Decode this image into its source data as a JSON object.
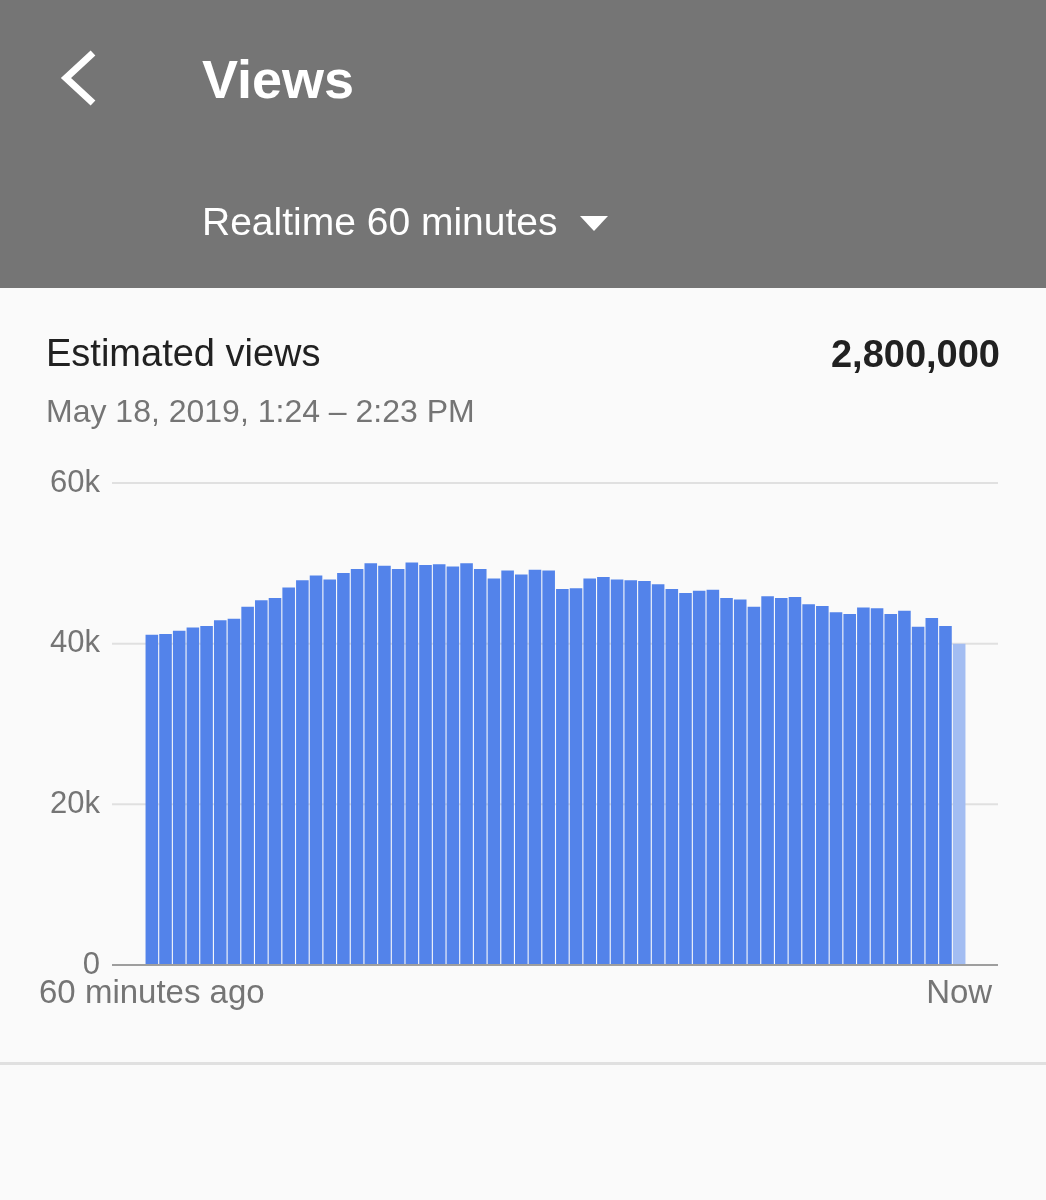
{
  "chart_data": {
    "type": "bar",
    "title": "Estimated views",
    "subtitle": "May 18, 2019, 1:24 – 2:23 PM",
    "annotations": [
      "Views",
      "Realtime 60 minutes",
      "2,800,000"
    ],
    "categories": [
      "60 minutes ago",
      null,
      null,
      null,
      null,
      null,
      null,
      null,
      null,
      null,
      null,
      null,
      null,
      null,
      null,
      null,
      null,
      null,
      null,
      null,
      null,
      null,
      null,
      null,
      null,
      null,
      null,
      null,
      null,
      null,
      null,
      null,
      null,
      null,
      null,
      null,
      null,
      null,
      null,
      null,
      null,
      null,
      null,
      null,
      null,
      null,
      null,
      null,
      null,
      null,
      null,
      null,
      null,
      null,
      null,
      null,
      null,
      null,
      null,
      "Now"
    ],
    "values": [
      41100,
      41200,
      41600,
      42000,
      42200,
      42900,
      43100,
      44600,
      45400,
      45700,
      47000,
      47900,
      48500,
      48000,
      48800,
      49300,
      50000,
      49700,
      49300,
      50100,
      49800,
      49900,
      49600,
      50000,
      49300,
      48100,
      49100,
      48600,
      49200,
      49100,
      46800,
      46900,
      48100,
      48300,
      48000,
      47900,
      47800,
      47400,
      46800,
      46300,
      46600,
      46700,
      45700,
      45500,
      44600,
      45900,
      45700,
      45800,
      44900,
      44700,
      43900,
      43700,
      44500,
      44400,
      43700,
      44100,
      42100,
      43200,
      42200,
      40000
    ],
    "colors": [
      "#5383ea",
      "#5383ea",
      "#5383ea",
      "#5383ea",
      "#5383ea",
      "#5383ea",
      "#5383ea",
      "#5383ea",
      "#5383ea",
      "#5383ea",
      "#5383ea",
      "#5383ea",
      "#5383ea",
      "#5383ea",
      "#5383ea",
      "#5383ea",
      "#5383ea",
      "#5383ea",
      "#5383ea",
      "#5383ea",
      "#5383ea",
      "#5383ea",
      "#5383ea",
      "#5383ea",
      "#5383ea",
      "#5383ea",
      "#5383ea",
      "#5383ea",
      "#5383ea",
      "#5383ea",
      "#5383ea",
      "#5383ea",
      "#5383ea",
      "#5383ea",
      "#5383ea",
      "#5383ea",
      "#5383ea",
      "#5383ea",
      "#5383ea",
      "#5383ea",
      "#5383ea",
      "#5383ea",
      "#5383ea",
      "#5383ea",
      "#5383ea",
      "#5383ea",
      "#5383ea",
      "#5383ea",
      "#5383ea",
      "#5383ea",
      "#5383ea",
      "#5383ea",
      "#5383ea",
      "#5383ea",
      "#5383ea",
      "#5383ea",
      "#5383ea",
      "#5383ea",
      "#5383ea",
      "#a3bdf2"
    ],
    "ylim": [
      0,
      60000
    ],
    "yticks": [
      0,
      {
        "value": 20000,
        "label": "20k"
      },
      {
        "value": 40000,
        "label": "40k"
      },
      {
        "value": 60000,
        "label": "60k"
      }
    ],
    "grid": "y"
  }
}
